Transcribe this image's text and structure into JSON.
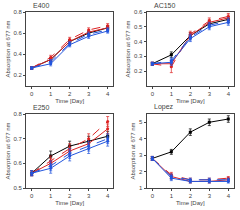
{
  "chart_data": [
    {
      "type": "line",
      "title": "E400",
      "xlabel": "Time [Day]",
      "ylabel": "Absorption at 677 nm",
      "x": [
        0,
        1,
        2,
        3,
        4
      ],
      "xlim": [
        -0.3,
        4.3
      ],
      "xticks": [
        0,
        1,
        2,
        3,
        4
      ],
      "ylim": [
        0.1,
        0.8
      ],
      "yticks": [
        0.2,
        0.4,
        0.6,
        0.8
      ],
      "grid": false,
      "series": [
        {
          "color": "#000000",
          "line_style": "solid",
          "marker": "square",
          "values": [
            0.27,
            0.35,
            0.52,
            0.6,
            0.65
          ],
          "error": [
            0.01,
            0.02,
            0.02,
            0.02,
            0.02
          ]
        },
        {
          "color": "#dd2222",
          "line_style": "dashed",
          "marker": "circle",
          "values": [
            0.27,
            0.37,
            0.54,
            0.63,
            0.67
          ],
          "error": [
            0.01,
            0.02,
            0.02,
            0.02,
            0.02
          ]
        },
        {
          "color": "#dd2222",
          "line_style": "solid",
          "marker": "circle",
          "values": [
            0.27,
            0.35,
            0.52,
            0.61,
            0.65
          ],
          "error": [
            0.01,
            0.02,
            0.02,
            0.02,
            0.02
          ]
        },
        {
          "color": "#2255dd",
          "line_style": "dashed",
          "marker": "circle",
          "values": [
            0.27,
            0.33,
            0.5,
            0.59,
            0.63
          ],
          "error": [
            0.01,
            0.02,
            0.02,
            0.02,
            0.02
          ]
        },
        {
          "color": "#2255dd",
          "line_style": "solid",
          "marker": "circle",
          "values": [
            0.27,
            0.31,
            0.49,
            0.57,
            0.62
          ],
          "error": [
            0.01,
            0.02,
            0.02,
            0.02,
            0.02
          ]
        }
      ]
    },
    {
      "type": "line",
      "title": "AC150",
      "xlabel": "Time [Day]",
      "ylabel": "Absorption at 677 nm",
      "x": [
        0,
        1,
        2,
        3,
        4
      ],
      "xlim": [
        -0.3,
        4.3
      ],
      "xticks": [
        0,
        1,
        2,
        3,
        4
      ],
      "ylim": [
        0.1,
        0.6
      ],
      "yticks": [
        0.2,
        0.3,
        0.4,
        0.5,
        0.6
      ],
      "grid": false,
      "series": [
        {
          "color": "#000000",
          "line_style": "solid",
          "marker": "square",
          "values": [
            0.25,
            0.31,
            0.44,
            0.52,
            0.55
          ],
          "error": [
            0.01,
            0.02,
            0.02,
            0.02,
            0.02
          ]
        },
        {
          "color": "#dd2222",
          "line_style": "dashed",
          "marker": "circle",
          "values": [
            0.25,
            0.23,
            0.45,
            0.54,
            0.57
          ],
          "error": [
            0.01,
            0.04,
            0.02,
            0.02,
            0.02
          ]
        },
        {
          "color": "#dd2222",
          "line_style": "solid",
          "marker": "circle",
          "values": [
            0.25,
            0.25,
            0.44,
            0.53,
            0.56
          ],
          "error": [
            0.01,
            0.02,
            0.02,
            0.02,
            0.02
          ]
        },
        {
          "color": "#2255dd",
          "line_style": "dashed",
          "marker": "circle",
          "values": [
            0.25,
            0.27,
            0.43,
            0.51,
            0.54
          ],
          "error": [
            0.01,
            0.02,
            0.02,
            0.02,
            0.02
          ]
        },
        {
          "color": "#2255dd",
          "line_style": "solid",
          "marker": "circle",
          "values": [
            0.25,
            0.26,
            0.42,
            0.5,
            0.53
          ],
          "error": [
            0.01,
            0.02,
            0.02,
            0.02,
            0.02
          ]
        }
      ]
    },
    {
      "type": "line",
      "title": "E250",
      "xlabel": "Time [Day]",
      "ylabel": "Absorption at 677 nm",
      "x": [
        0,
        1,
        2,
        3,
        4
      ],
      "xlim": [
        -0.3,
        4.3
      ],
      "xticks": [
        0,
        1,
        2,
        3,
        4
      ],
      "ylim": [
        0.5,
        0.8
      ],
      "yticks": [
        0.5,
        0.6,
        0.7,
        0.8
      ],
      "grid": false,
      "series": [
        {
          "color": "#000000",
          "line_style": "solid",
          "marker": "square",
          "values": [
            0.56,
            0.63,
            0.67,
            0.69,
            0.71
          ],
          "error": [
            0.01,
            0.02,
            0.02,
            0.02,
            0.02
          ]
        },
        {
          "color": "#dd2222",
          "line_style": "dashed",
          "marker": "circle",
          "values": [
            0.56,
            0.61,
            0.66,
            0.7,
            0.77
          ],
          "error": [
            0.01,
            0.02,
            0.02,
            0.02,
            0.02
          ]
        },
        {
          "color": "#dd2222",
          "line_style": "solid",
          "marker": "circle",
          "values": [
            0.56,
            0.6,
            0.65,
            0.68,
            0.74
          ],
          "error": [
            0.01,
            0.02,
            0.02,
            0.02,
            0.02
          ]
        },
        {
          "color": "#2255dd",
          "line_style": "dashed",
          "marker": "circle",
          "values": [
            0.56,
            0.59,
            0.64,
            0.67,
            0.7
          ],
          "error": [
            0.01,
            0.02,
            0.02,
            0.02,
            0.02
          ]
        },
        {
          "color": "#2255dd",
          "line_style": "solid",
          "marker": "circle",
          "values": [
            0.56,
            0.58,
            0.63,
            0.66,
            0.69
          ],
          "error": [
            0.01,
            0.02,
            0.02,
            0.02,
            0.02
          ]
        }
      ]
    },
    {
      "type": "line",
      "title": "Lopez",
      "xlabel": "Time [Day]",
      "ylabel": "Absorption at 677 nm",
      "x": [
        0,
        1,
        2,
        3,
        4
      ],
      "xlim": [
        -0.3,
        4.3
      ],
      "xticks": [
        0,
        1,
        2,
        3,
        4
      ],
      "ylim": [
        1.0,
        5.5
      ],
      "yticks": [
        1,
        2,
        3,
        4,
        5
      ],
      "grid": false,
      "series": [
        {
          "color": "#000000",
          "line_style": "solid",
          "marker": "square",
          "values": [
            2.8,
            3.2,
            4.4,
            5.0,
            5.2
          ],
          "error": [
            0.12,
            0.15,
            0.2,
            0.2,
            0.2
          ]
        },
        {
          "color": "#dd2222",
          "line_style": "dashed",
          "marker": "circle",
          "values": [
            2.8,
            1.8,
            1.5,
            1.5,
            1.6
          ],
          "error": [
            0.12,
            0.15,
            0.1,
            0.1,
            0.1
          ]
        },
        {
          "color": "#dd2222",
          "line_style": "solid",
          "marker": "circle",
          "values": [
            2.8,
            1.7,
            1.4,
            1.4,
            1.5
          ],
          "error": [
            0.12,
            0.15,
            0.1,
            0.1,
            0.1
          ]
        },
        {
          "color": "#2255dd",
          "line_style": "dashed",
          "marker": "circle",
          "values": [
            2.8,
            1.7,
            1.5,
            1.5,
            1.5
          ],
          "error": [
            0.12,
            0.15,
            0.1,
            0.1,
            0.1
          ]
        },
        {
          "color": "#2255dd",
          "line_style": "solid",
          "marker": "circle",
          "values": [
            2.8,
            1.6,
            1.4,
            1.4,
            1.4
          ],
          "error": [
            0.12,
            0.15,
            0.1,
            0.1,
            0.1
          ]
        }
      ]
    }
  ]
}
